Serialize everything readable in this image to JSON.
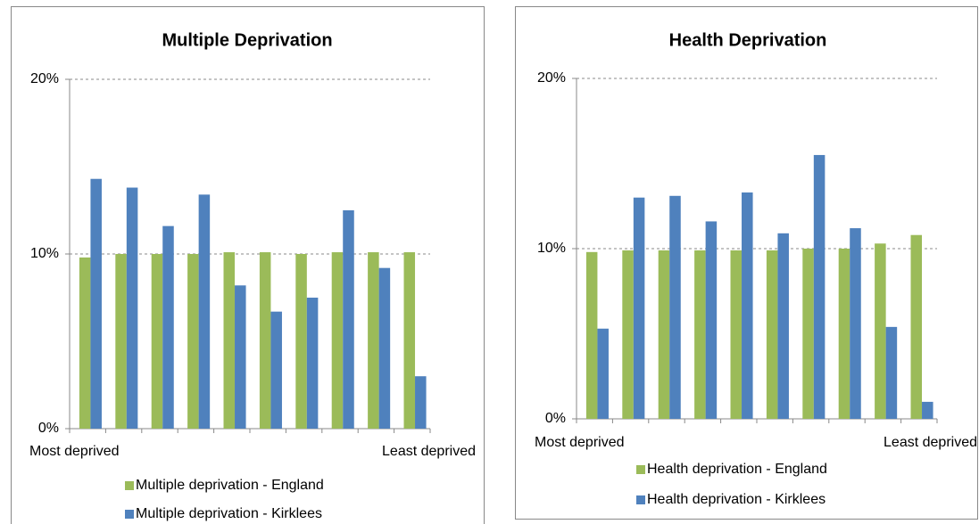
{
  "chart_data": [
    {
      "type": "bar",
      "title": "Multiple Deprivation",
      "categories": [
        "Most deprived",
        null,
        null,
        null,
        null,
        null,
        null,
        null,
        null,
        "Least deprived"
      ],
      "series": [
        {
          "name": "Multiple deprivation - England",
          "color": "#9bbb59",
          "values": [
            9.8,
            10.0,
            10.0,
            10.0,
            10.1,
            10.1,
            10.0,
            10.1,
            10.1,
            10.1
          ]
        },
        {
          "name": "Multiple deprivation - Kirklees",
          "color": "#4f81bd",
          "values": [
            14.3,
            13.8,
            11.6,
            13.4,
            8.2,
            6.7,
            7.5,
            12.5,
            9.2,
            3.0
          ]
        }
      ],
      "ylim": [
        0,
        20
      ],
      "yticks": [
        {
          "value": 0,
          "label": "0%"
        },
        {
          "value": 10,
          "label": "10%"
        },
        {
          "value": 20,
          "label": "20%"
        }
      ],
      "grid": true,
      "legend": "bottom"
    },
    {
      "type": "bar",
      "title": "Health Deprivation",
      "categories": [
        "Most deprived",
        null,
        null,
        null,
        null,
        null,
        null,
        null,
        null,
        "Least deprived"
      ],
      "series": [
        {
          "name": "Health deprivation - England",
          "color": "#9bbb59",
          "values": [
            9.8,
            9.9,
            9.9,
            9.9,
            9.9,
            9.9,
            10.0,
            10.0,
            10.3,
            10.8
          ]
        },
        {
          "name": "Health deprivation - Kirklees",
          "color": "#4f81bd",
          "values": [
            5.3,
            13.0,
            13.1,
            11.6,
            13.3,
            10.9,
            15.5,
            11.2,
            5.4,
            1.0
          ]
        }
      ],
      "ylim": [
        0,
        20
      ],
      "yticks": [
        {
          "value": 0,
          "label": "0%"
        },
        {
          "value": 10,
          "label": "10%"
        },
        {
          "value": 20,
          "label": "20%"
        }
      ],
      "grid": true,
      "legend": "bottom"
    }
  ]
}
